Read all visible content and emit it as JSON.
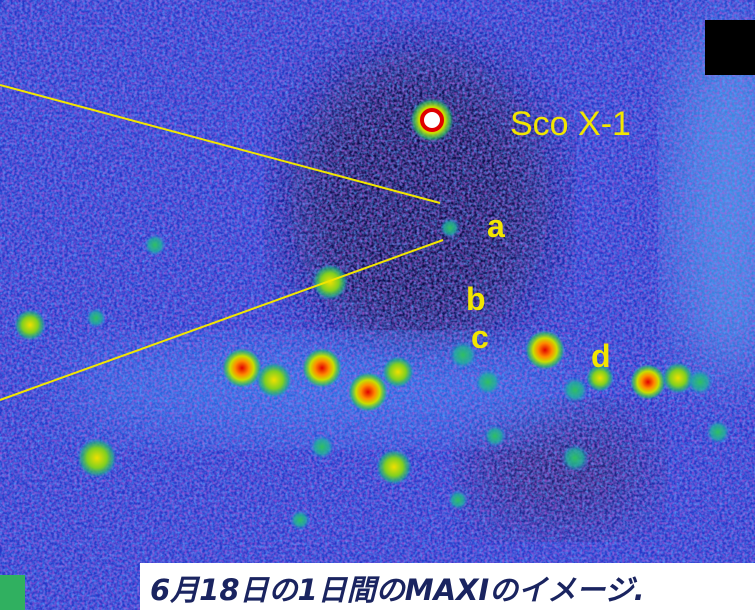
{
  "image": {
    "source_label": "Sco X-1",
    "labels": [
      "a",
      "b",
      "c",
      "d"
    ],
    "caption": "6月18日の1日間のMAXIのイメージ."
  }
}
